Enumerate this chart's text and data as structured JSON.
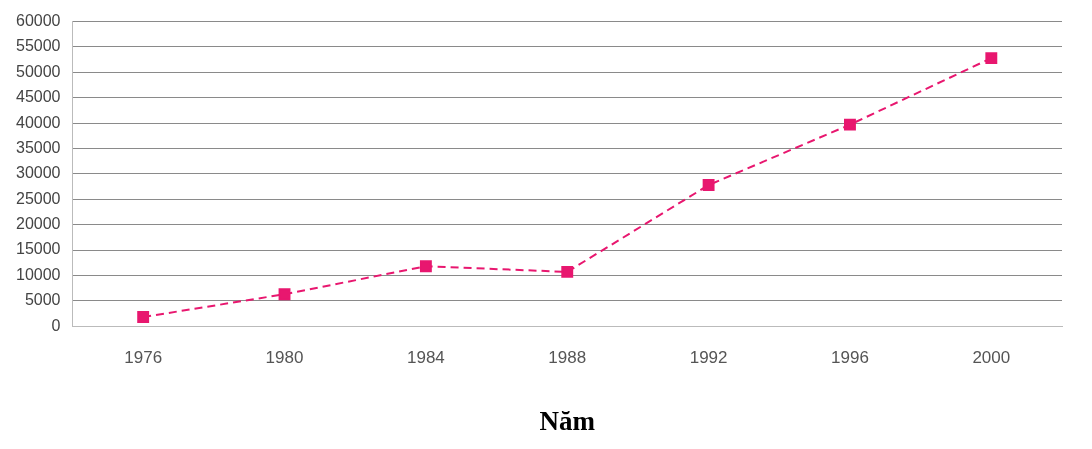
{
  "chart_data": {
    "type": "line",
    "xlabel": "Năm",
    "categories": [
      "1976",
      "1980",
      "1984",
      "1988",
      "1992",
      "1996",
      "2000"
    ],
    "series": [
      {
        "color": "#e8176f",
        "values": [
          1800,
          6300,
          11800,
          10700,
          27800,
          39700,
          52800
        ]
      }
    ],
    "ylim": [
      0,
      60000
    ],
    "yticks": [
      0,
      5000,
      10000,
      15000,
      20000,
      25000,
      30000,
      35000,
      40000,
      45000,
      50000,
      55000,
      60000
    ],
    "grid": "y",
    "legend": false,
    "marker": "square",
    "line_style": "dashed"
  }
}
